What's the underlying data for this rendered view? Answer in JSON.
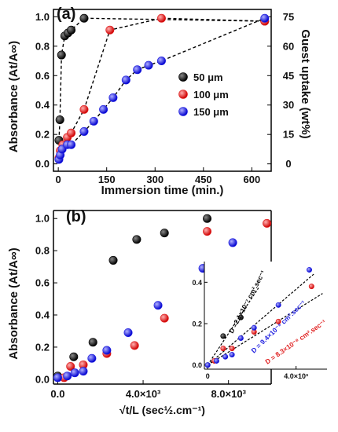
{
  "chart_data": [
    {
      "type": "scatter",
      "panel_label": "(a)",
      "xlabel": "Immersion time (min.)",
      "ylabel_left": "Absorbance (At/A∞)",
      "ylabel_right": "Guest uptake (wt%)",
      "xlim": [
        -15,
        660
      ],
      "ylim": [
        -0.05,
        1.05
      ],
      "xticks": [
        0,
        150,
        300,
        450,
        600
      ],
      "yticks": [
        0.0,
        0.2,
        0.4,
        0.6,
        0.8,
        1.0
      ],
      "yticks_right": [
        0,
        15,
        30,
        45,
        60,
        75
      ],
      "connect_dashed": true,
      "legend": {
        "placement": "center-right"
      },
      "series": [
        {
          "name": "50 μm",
          "color": "#000000",
          "points": [
            [
              2,
              0.16
            ],
            [
              5,
              0.3
            ],
            [
              10,
              0.74
            ],
            [
              20,
              0.87
            ],
            [
              30,
              0.89
            ],
            [
              40,
              0.91
            ],
            [
              80,
              0.99
            ],
            [
              640,
              0.97
            ]
          ]
        },
        {
          "name": "100 μm",
          "color": "#e02020",
          "points": [
            [
              2,
              0.04
            ],
            [
              6,
              0.09
            ],
            [
              14,
              0.13
            ],
            [
              28,
              0.18
            ],
            [
              40,
              0.21
            ],
            [
              80,
              0.37
            ],
            [
              160,
              0.91
            ],
            [
              320,
              0.99
            ],
            [
              640,
              0.97
            ]
          ]
        },
        {
          "name": "150 μm",
          "color": "#2020e0",
          "points": [
            [
              2,
              0.03
            ],
            [
              6,
              0.06
            ],
            [
              12,
              0.1
            ],
            [
              28,
              0.13
            ],
            [
              40,
              0.13
            ],
            [
              80,
              0.22
            ],
            [
              110,
              0.29
            ],
            [
              140,
              0.37
            ],
            [
              170,
              0.45
            ],
            [
              210,
              0.57
            ],
            [
              245,
              0.64
            ],
            [
              280,
              0.67
            ],
            [
              320,
              0.7
            ],
            [
              640,
              0.99
            ]
          ]
        }
      ]
    },
    {
      "type": "scatter",
      "panel_label": "(b)",
      "xlabel": "√t/L (sec½.cm⁻¹)",
      "ylabel": "Absorbance (At/A∞)",
      "xlim": [
        -200,
        10000
      ],
      "ylim": [
        -0.03,
        1.05
      ],
      "xticks": [
        0,
        4000,
        8000
      ],
      "xtick_labels": [
        "0.0",
        "4.0×10³",
        "8.0×10³"
      ],
      "yticks": [
        0.0,
        0.2,
        0.4,
        0.6,
        0.8,
        1.0
      ],
      "series": [
        {
          "name": "50 μm",
          "color": "#000000",
          "points": [
            [
              0,
              0.02
            ],
            [
              750,
              0.14
            ],
            [
              1650,
              0.23
            ],
            [
              2600,
              0.74
            ],
            [
              3700,
              0.87
            ],
            [
              5000,
              0.91
            ],
            [
              7000,
              1.0
            ]
          ]
        },
        {
          "name": "100 μm",
          "color": "#e02020",
          "points": [
            [
              300,
              0.01
            ],
            [
              600,
              0.08
            ],
            [
              1200,
              0.09
            ],
            [
              2300,
              0.16
            ],
            [
              3600,
              0.21
            ],
            [
              5000,
              0.38
            ],
            [
              7000,
              0.92
            ],
            [
              9800,
              0.97
            ]
          ]
        },
        {
          "name": "150 μm",
          "color": "#2020e0",
          "points": [
            [
              0,
              0.01
            ],
            [
              450,
              0.02
            ],
            [
              800,
              0.04
            ],
            [
              1200,
              0.05
            ],
            [
              1600,
              0.13
            ],
            [
              2300,
              0.18
            ],
            [
              3300,
              0.29
            ],
            [
              4700,
              0.46
            ],
            [
              6800,
              0.69
            ],
            [
              8200,
              0.85
            ]
          ]
        }
      ],
      "inset": {
        "xlim": [
          -150,
          5400
        ],
        "ylim": [
          -0.02,
          0.5
        ],
        "xticks": [
          0,
          4000
        ],
        "xtick_labels": [
          "0",
          "4.0×10³"
        ],
        "yticks": [
          0.0,
          0.2,
          0.4
        ],
        "yticks_labels": [
          "0.0",
          "0.2",
          "0.4"
        ],
        "fits": [
          {
            "color": "#000000",
            "slope": 0.000162
          },
          {
            "color": "#2020e0",
            "slope": 9.15e-05
          },
          {
            "color": "#e02020",
            "slope": 6.65e-05
          }
        ],
        "annotations": [
          {
            "text": "D =2.1×10⁻⁷ cm².sec⁻¹",
            "color": "#000000"
          },
          {
            "text": "D = 9.4×10⁻⁸ cm².sec⁻¹",
            "color": "#2020e0"
          },
          {
            "text": "D = 8.3×10⁻⁸ cm².sec⁻¹",
            "color": "#e02020"
          }
        ],
        "series": [
          {
            "color": "#000000",
            "points": [
              [
                0,
                0.0
              ],
              [
                700,
                0.14
              ],
              [
                1500,
                0.23
              ]
            ]
          },
          {
            "color": "#e02020",
            "points": [
              [
                300,
                0.02
              ],
              [
                700,
                0.08
              ],
              [
                1100,
                0.08
              ],
              [
                2100,
                0.16
              ],
              [
                3200,
                0.21
              ],
              [
                4700,
                0.38
              ]
            ]
          },
          {
            "color": "#2020e0",
            "points": [
              [
                0,
                0.0
              ],
              [
                400,
                0.02
              ],
              [
                800,
                0.04
              ],
              [
                1100,
                0.05
              ],
              [
                1500,
                0.13
              ],
              [
                2100,
                0.18
              ],
              [
                3200,
                0.29
              ],
              [
                4600,
                0.46
              ]
            ]
          }
        ]
      }
    }
  ]
}
